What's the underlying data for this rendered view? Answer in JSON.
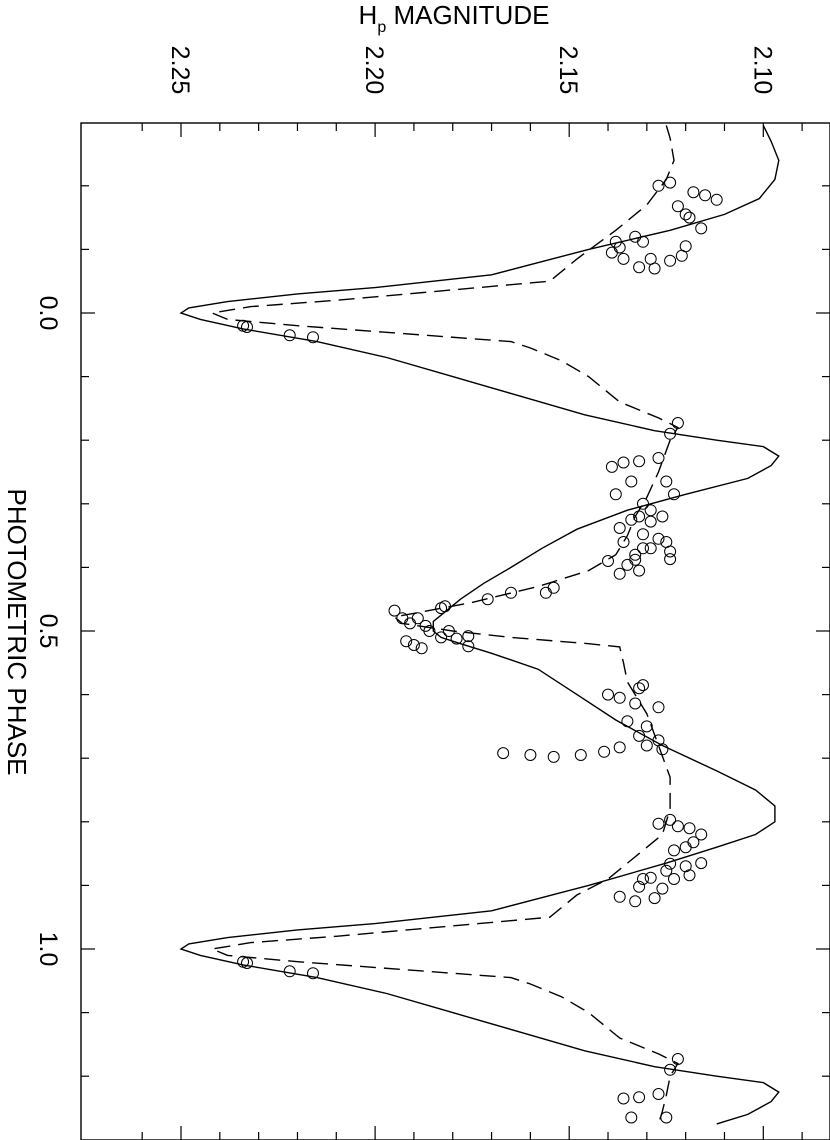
{
  "chart_data": {
    "type": "scatter",
    "xlabel_main": "H",
    "xlabel_sub": "p",
    "xlabel_rest": " MAGNITUDE",
    "ylabel": "PHOTOMETRIC PHASE",
    "mag_range": [
      2.08,
      2.255
    ],
    "phase_range": [
      -0.295,
      1.275
    ],
    "mag_ticks": [
      {
        "value": 2.25,
        "label": "2.25"
      },
      {
        "value": 2.2,
        "label": "2.20"
      },
      {
        "value": 2.15,
        "label": "2.15"
      },
      {
        "value": 2.1,
        "label": "2.10"
      }
    ],
    "phase_ticks": [
      {
        "value": 0.0,
        "label": "0.0"
      },
      {
        "value": 0.5,
        "label": "0.5"
      },
      {
        "value": 1.0,
        "label": "1.0"
      }
    ],
    "orientation": "rotated: magnitude on top axis increasing leftward, phase on vertical axis increasing downward",
    "series": [
      {
        "style": "open circles",
        "points": [
          [
            2.127,
            -0.2
          ],
          [
            2.124,
            -0.205
          ],
          [
            2.118,
            -0.19
          ],
          [
            2.115,
            -0.185
          ],
          [
            2.112,
            -0.178
          ],
          [
            2.122,
            -0.168
          ],
          [
            2.12,
            -0.155
          ],
          [
            2.119,
            -0.15
          ],
          [
            2.116,
            -0.133
          ],
          [
            2.133,
            -0.12
          ],
          [
            2.131,
            -0.112
          ],
          [
            2.12,
            -0.105
          ],
          [
            2.138,
            -0.112
          ],
          [
            2.137,
            -0.103
          ],
          [
            2.139,
            -0.095
          ],
          [
            2.136,
            -0.085
          ],
          [
            2.129,
            -0.085
          ],
          [
            2.124,
            -0.082
          ],
          [
            2.121,
            -0.09
          ],
          [
            2.128,
            -0.07
          ],
          [
            2.132,
            -0.072
          ],
          [
            2.233,
            0.022
          ],
          [
            2.234,
            0.02
          ],
          [
            2.222,
            0.035
          ],
          [
            2.216,
            0.038
          ],
          [
            2.122,
            0.173
          ],
          [
            2.124,
            0.19
          ],
          [
            2.127,
            0.228
          ],
          [
            2.132,
            0.233
          ],
          [
            2.136,
            0.235
          ],
          [
            2.139,
            0.242
          ],
          [
            2.134,
            0.265
          ],
          [
            2.125,
            0.265
          ],
          [
            2.131,
            0.3
          ],
          [
            2.138,
            0.285
          ],
          [
            2.123,
            0.285
          ],
          [
            2.129,
            0.31
          ],
          [
            2.132,
            0.32
          ],
          [
            2.126,
            0.32
          ],
          [
            2.129,
            0.328
          ],
          [
            2.134,
            0.325
          ],
          [
            2.137,
            0.338
          ],
          [
            2.131,
            0.348
          ],
          [
            2.127,
            0.355
          ],
          [
            2.136,
            0.36
          ],
          [
            2.125,
            0.36
          ],
          [
            2.133,
            0.38
          ],
          [
            2.129,
            0.37
          ],
          [
            2.131,
            0.37
          ],
          [
            2.124,
            0.375
          ],
          [
            2.124,
            0.387
          ],
          [
            2.133,
            0.388
          ],
          [
            2.135,
            0.396
          ],
          [
            2.14,
            0.39
          ],
          [
            2.132,
            0.405
          ],
          [
            2.137,
            0.41
          ],
          [
            2.154,
            0.432
          ],
          [
            2.156,
            0.44
          ],
          [
            2.165,
            0.44
          ],
          [
            2.171,
            0.45
          ],
          [
            2.182,
            0.461
          ],
          [
            2.183,
            0.464
          ],
          [
            2.195,
            0.468
          ],
          [
            2.193,
            0.48
          ],
          [
            2.189,
            0.48
          ],
          [
            2.191,
            0.488
          ],
          [
            2.187,
            0.492
          ],
          [
            2.186,
            0.5
          ],
          [
            2.181,
            0.5
          ],
          [
            2.176,
            0.508
          ],
          [
            2.183,
            0.51
          ],
          [
            2.192,
            0.516
          ],
          [
            2.19,
            0.522
          ],
          [
            2.188,
            0.527
          ],
          [
            2.176,
            0.524
          ],
          [
            2.179,
            0.512
          ],
          [
            2.131,
            0.585
          ],
          [
            2.132,
            0.59
          ],
          [
            2.14,
            0.6
          ],
          [
            2.137,
            0.605
          ],
          [
            2.133,
            0.614
          ],
          [
            2.127,
            0.62
          ],
          [
            2.135,
            0.642
          ],
          [
            2.13,
            0.65
          ],
          [
            2.132,
            0.665
          ],
          [
            2.127,
            0.672
          ],
          [
            2.13,
            0.68
          ],
          [
            2.137,
            0.683
          ],
          [
            2.126,
            0.686
          ],
          [
            2.167,
            0.692
          ],
          [
            2.16,
            0.695
          ],
          [
            2.147,
            0.695
          ],
          [
            2.141,
            0.69
          ],
          [
            2.154,
            0.698
          ],
          [
            2.127,
            0.803
          ],
          [
            2.124,
            0.797
          ],
          [
            2.122,
            0.807
          ],
          [
            2.119,
            0.81
          ],
          [
            2.116,
            0.82
          ],
          [
            2.118,
            0.832
          ],
          [
            2.12,
            0.84
          ],
          [
            2.123,
            0.845
          ],
          [
            2.124,
            0.866
          ],
          [
            2.12,
            0.87
          ],
          [
            2.116,
            0.865
          ],
          [
            2.125,
            0.877
          ],
          [
            2.123,
            0.89
          ],
          [
            2.119,
            0.884
          ],
          [
            2.126,
            0.905
          ],
          [
            2.129,
            0.888
          ],
          [
            2.132,
            0.902
          ],
          [
            2.133,
            0.925
          ],
          [
            2.128,
            0.92
          ],
          [
            2.137,
            0.918
          ],
          [
            2.131,
            0.89
          ],
          [
            2.233,
            1.022
          ],
          [
            2.234,
            1.02
          ],
          [
            2.222,
            1.035
          ],
          [
            2.216,
            1.038
          ],
          [
            2.122,
            1.173
          ],
          [
            2.124,
            1.19
          ],
          [
            2.127,
            1.228
          ],
          [
            2.132,
            1.233
          ],
          [
            2.136,
            1.235
          ],
          [
            2.134,
            1.265
          ],
          [
            2.125,
            1.265
          ]
        ]
      },
      {
        "style": "solid line",
        "points": [
          [
            2.1,
            -0.295
          ],
          [
            2.098,
            -0.27
          ],
          [
            2.096,
            -0.24
          ],
          [
            2.097,
            -0.21
          ],
          [
            2.101,
            -0.18
          ],
          [
            2.11,
            -0.155
          ],
          [
            2.124,
            -0.13
          ],
          [
            2.145,
            -0.1
          ],
          [
            2.17,
            -0.06
          ],
          [
            2.2,
            -0.04
          ],
          [
            2.22,
            -0.03
          ],
          [
            2.238,
            -0.018
          ],
          [
            2.248,
            -0.008
          ],
          [
            2.25,
            0.0
          ],
          [
            2.245,
            0.01
          ],
          [
            2.234,
            0.025
          ],
          [
            2.215,
            0.045
          ],
          [
            2.197,
            0.07
          ],
          [
            2.18,
            0.1
          ],
          [
            2.163,
            0.13
          ],
          [
            2.146,
            0.16
          ],
          [
            2.128,
            0.185
          ],
          [
            2.112,
            0.2
          ],
          [
            2.1,
            0.21
          ],
          [
            2.096,
            0.225
          ],
          [
            2.098,
            0.24
          ],
          [
            2.104,
            0.26
          ],
          [
            2.12,
            0.285
          ],
          [
            2.135,
            0.31
          ],
          [
            2.148,
            0.34
          ],
          [
            2.157,
            0.37
          ],
          [
            2.165,
            0.4
          ],
          [
            2.172,
            0.425
          ],
          [
            2.178,
            0.45
          ],
          [
            2.182,
            0.47
          ],
          [
            2.185,
            0.485
          ],
          [
            2.185,
            0.5
          ],
          [
            2.183,
            0.51
          ],
          [
            2.178,
            0.52
          ],
          [
            2.17,
            0.535
          ],
          [
            2.158,
            0.56
          ],
          [
            2.148,
            0.6
          ],
          [
            2.138,
            0.64
          ],
          [
            2.126,
            0.68
          ],
          [
            2.112,
            0.72
          ],
          [
            2.102,
            0.75
          ],
          [
            2.097,
            0.775
          ],
          [
            2.097,
            0.8
          ],
          [
            2.102,
            0.82
          ],
          [
            2.112,
            0.84
          ],
          [
            2.125,
            0.865
          ],
          [
            2.145,
            0.9
          ],
          [
            2.17,
            0.94
          ],
          [
            2.2,
            0.96
          ],
          [
            2.22,
            0.97
          ],
          [
            2.238,
            0.982
          ],
          [
            2.248,
            0.992
          ],
          [
            2.25,
            1.0
          ],
          [
            2.245,
            1.01
          ],
          [
            2.234,
            1.025
          ],
          [
            2.215,
            1.045
          ],
          [
            2.197,
            1.07
          ],
          [
            2.18,
            1.1
          ],
          [
            2.163,
            1.13
          ],
          [
            2.146,
            1.16
          ],
          [
            2.128,
            1.185
          ],
          [
            2.112,
            1.2
          ],
          [
            2.1,
            1.21
          ],
          [
            2.096,
            1.225
          ],
          [
            2.098,
            1.24
          ],
          [
            2.104,
            1.26
          ],
          [
            2.112,
            1.275
          ]
        ]
      },
      {
        "style": "dashed line",
        "points": [
          [
            2.125,
            -0.295
          ],
          [
            2.124,
            -0.275
          ],
          [
            2.123,
            -0.24
          ],
          [
            2.125,
            -0.21
          ],
          [
            2.13,
            -0.17
          ],
          [
            2.138,
            -0.13
          ],
          [
            2.148,
            -0.085
          ],
          [
            2.155,
            -0.05
          ],
          [
            2.21,
            -0.02
          ],
          [
            2.232,
            -0.01
          ],
          [
            2.242,
            0.0
          ],
          [
            2.238,
            0.01
          ],
          [
            2.22,
            0.02
          ],
          [
            2.165,
            0.045
          ],
          [
            2.16,
            0.055
          ],
          [
            2.152,
            0.075
          ],
          [
            2.145,
            0.1
          ],
          [
            2.137,
            0.14
          ],
          [
            2.127,
            0.165
          ],
          [
            2.122,
            0.18
          ],
          [
            2.124,
            0.2
          ],
          [
            2.127,
            0.25
          ],
          [
            2.13,
            0.29
          ],
          [
            2.133,
            0.32
          ],
          [
            2.135,
            0.35
          ],
          [
            2.138,
            0.38
          ],
          [
            2.145,
            0.405
          ],
          [
            2.158,
            0.43
          ],
          [
            2.175,
            0.455
          ],
          [
            2.188,
            0.47
          ],
          [
            2.195,
            0.478
          ],
          [
            2.193,
            0.488
          ],
          [
            2.18,
            0.5
          ],
          [
            2.165,
            0.51
          ],
          [
            2.145,
            0.52
          ],
          [
            2.137,
            0.525
          ],
          [
            2.136,
            0.55
          ],
          [
            2.135,
            0.58
          ],
          [
            2.13,
            0.63
          ],
          [
            2.127,
            0.68
          ],
          [
            2.124,
            0.73
          ],
          [
            2.124,
            0.78
          ],
          [
            2.126,
            0.82
          ],
          [
            2.132,
            0.85
          ],
          [
            2.14,
            0.89
          ],
          [
            2.148,
            0.915
          ],
          [
            2.155,
            0.95
          ],
          [
            2.21,
            0.98
          ],
          [
            2.232,
            0.99
          ],
          [
            2.242,
            1.0
          ],
          [
            2.238,
            1.01
          ],
          [
            2.22,
            1.02
          ],
          [
            2.165,
            1.045
          ],
          [
            2.16,
            1.055
          ],
          [
            2.152,
            1.075
          ],
          [
            2.145,
            1.1
          ],
          [
            2.137,
            1.14
          ],
          [
            2.127,
            1.165
          ],
          [
            2.122,
            1.18
          ],
          [
            2.124,
            1.2
          ],
          [
            2.125,
            1.23
          ],
          [
            2.126,
            1.255
          ],
          [
            2.127,
            1.275
          ]
        ]
      }
    ]
  }
}
